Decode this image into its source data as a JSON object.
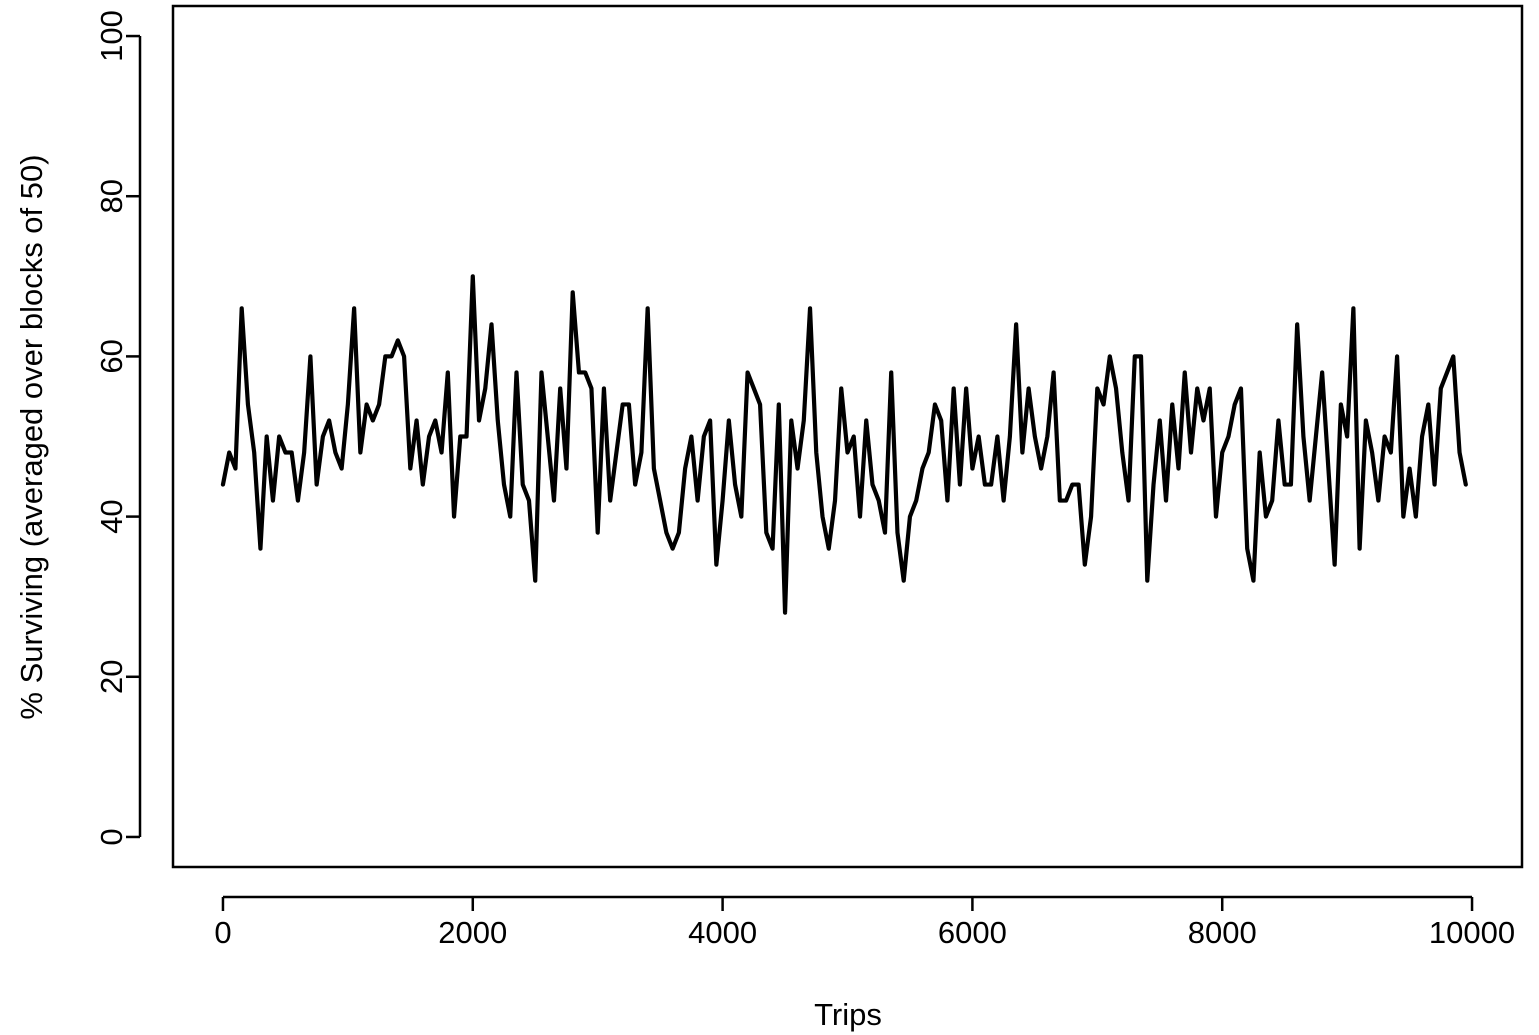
{
  "chart_data": {
    "type": "line",
    "title": "",
    "xlabel": "Trips",
    "ylabel": "% Surviving (averaged over blocks of 50)",
    "xlim": [
      -400,
      10400
    ],
    "ylim": [
      -3.75,
      103.75
    ],
    "x_ticks": [
      0,
      2000,
      4000,
      6000,
      8000,
      10000
    ],
    "y_ticks": [
      0,
      20,
      40,
      60,
      80,
      100
    ],
    "x_tick_labels": [
      "0",
      "2000",
      "4000",
      "6000",
      "8000",
      "10000"
    ],
    "y_tick_labels": [
      "0",
      "20",
      "40",
      "60",
      "80",
      "100"
    ],
    "grid": false,
    "legend": "none",
    "line_color": "#000000",
    "series": [
      {
        "x": [
          0,
          50,
          100,
          150,
          200,
          250,
          300,
          350,
          400,
          450,
          500,
          550,
          600,
          650,
          700,
          750,
          800,
          850,
          900,
          950,
          1000,
          1050,
          1100,
          1150,
          1200,
          1250,
          1300,
          1350,
          1400,
          1450,
          1500,
          1550,
          1600,
          1650,
          1700,
          1750,
          1800,
          1850,
          1900,
          1950,
          2000,
          2050,
          2100,
          2150,
          2200,
          2250,
          2300,
          2350,
          2400,
          2450,
          2500,
          2550,
          2600,
          2650,
          2700,
          2750,
          2800,
          2850,
          2900,
          2950,
          3000,
          3050,
          3100,
          3150,
          3200,
          3250,
          3300,
          3350,
          3400,
          3450,
          3500,
          3550,
          3600,
          3650,
          3700,
          3750,
          3800,
          3850,
          3900,
          3950,
          4000,
          4050,
          4100,
          4150,
          4200,
          4250,
          4300,
          4350,
          4400,
          4450,
          4500,
          4550,
          4600,
          4650,
          4700,
          4750,
          4800,
          4850,
          4900,
          4950,
          5000,
          5050,
          5100,
          5150,
          5200,
          5250,
          5300,
          5350,
          5400,
          5450,
          5500,
          5550,
          5600,
          5650,
          5700,
          5750,
          5800,
          5850,
          5900,
          5950,
          6000,
          6050,
          6100,
          6150,
          6200,
          6250,
          6300,
          6350,
          6400,
          6450,
          6500,
          6550,
          6600,
          6650,
          6700,
          6750,
          6800,
          6850,
          6900,
          6950,
          7000,
          7050,
          7100,
          7150,
          7200,
          7250,
          7300,
          7350,
          7400,
          7450,
          7500,
          7550,
          7600,
          7650,
          7700,
          7750,
          7800,
          7850,
          7900,
          7950,
          8000,
          8050,
          8100,
          8150,
          8200,
          8250,
          8300,
          8350,
          8400,
          8450,
          8500,
          8550,
          8600,
          8650,
          8700,
          8750,
          8800,
          8850,
          8900,
          8950,
          9000,
          9050,
          9100,
          9150,
          9200,
          9250,
          9300,
          9350,
          9400,
          9450,
          9500,
          9550,
          9600,
          9650,
          9700,
          9750,
          9800,
          9850,
          9900,
          9950
        ],
        "y": [
          44,
          48,
          46,
          66,
          54,
          48,
          36,
          50,
          42,
          50,
          48,
          48,
          42,
          48,
          60,
          44,
          50,
          52,
          48,
          46,
          54,
          66,
          48,
          54,
          52,
          54,
          60,
          60,
          62,
          60,
          46,
          52,
          44,
          50,
          52,
          48,
          58,
          40,
          50,
          50,
          70,
          52,
          56,
          64,
          52,
          44,
          40,
          58,
          44,
          42,
          32,
          58,
          50,
          42,
          56,
          46,
          68,
          58,
          58,
          56,
          38,
          56,
          42,
          48,
          54,
          54,
          44,
          48,
          66,
          46,
          42,
          38,
          36,
          38,
          46,
          50,
          42,
          50,
          52,
          34,
          42,
          52,
          44,
          40,
          58,
          56,
          54,
          38,
          36,
          54,
          28,
          52,
          46,
          52,
          66,
          48,
          40,
          36,
          42,
          56,
          48,
          50,
          40,
          52,
          44,
          42,
          38,
          58,
          38,
          32,
          40,
          42,
          46,
          48,
          54,
          52,
          42,
          56,
          44,
          56,
          46,
          50,
          44,
          44,
          50,
          42,
          50,
          64,
          48,
          56,
          50,
          46,
          50,
          58,
          42,
          42,
          44,
          44,
          34,
          40,
          56,
          54,
          60,
          56,
          48,
          42,
          60,
          60,
          32,
          44,
          52,
          42,
          54,
          46,
          58,
          48,
          56,
          52,
          56,
          40,
          48,
          50,
          54,
          56,
          36,
          32,
          48,
          40,
          42,
          52,
          44,
          44,
          64,
          50,
          42,
          50,
          58,
          46,
          34,
          54,
          50,
          66,
          36,
          52,
          48,
          42,
          50,
          48,
          60,
          40,
          46,
          40,
          50,
          54,
          44,
          56,
          58,
          60,
          48,
          44
        ]
      }
    ]
  }
}
